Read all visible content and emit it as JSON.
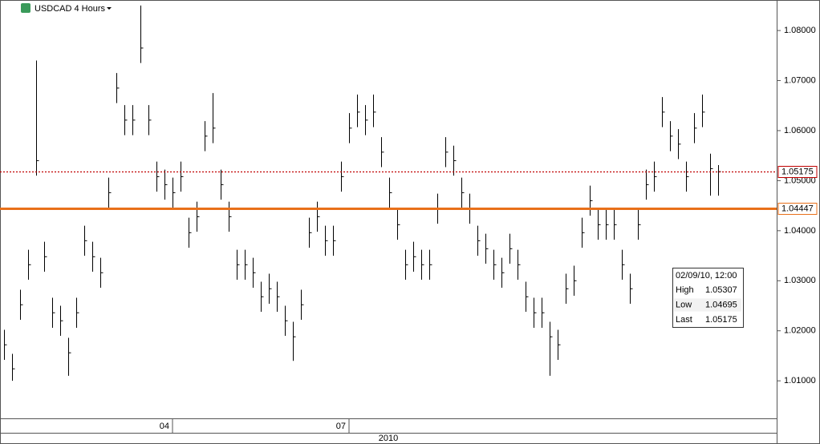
{
  "chart_data": {
    "type": "ohlc",
    "title": "USDCAD 4 Hours",
    "x_group_label": "2010",
    "categories": [
      null,
      null,
      null,
      null,
      null,
      null,
      null,
      null,
      null,
      null,
      null,
      null,
      null,
      null,
      null,
      null,
      null,
      null,
      null,
      null,
      null,
      "04",
      null,
      null,
      null,
      null,
      null,
      null,
      null,
      null,
      null,
      null,
      null,
      null,
      null,
      null,
      null,
      null,
      null,
      null,
      null,
      null,
      null,
      "07",
      null,
      null,
      null,
      null,
      null,
      null,
      null,
      null,
      null,
      null,
      null,
      null,
      null,
      null,
      null,
      null,
      null,
      null,
      null,
      null,
      null,
      null,
      null,
      null,
      null,
      null,
      null,
      null,
      null,
      null,
      null,
      null,
      null,
      null,
      null,
      null,
      null,
      null,
      null,
      null,
      null,
      null,
      null,
      null,
      null,
      null
    ],
    "series": [
      {
        "color": "#000000",
        "high": [
          1.0202,
          1.0154,
          1.0282,
          1.0362,
          1.074,
          1.0378,
          1.0266,
          1.025,
          1.0186,
          1.0266,
          1.041,
          1.0378,
          1.0346,
          1.0506,
          1.0715,
          1.0651,
          1.0651,
          1.085,
          1.0651,
          1.0538,
          1.0522,
          1.0506,
          1.0538,
          1.0426,
          1.0458,
          1.0619,
          1.0675,
          1.0522,
          1.0458,
          1.0362,
          1.0362,
          1.0346,
          1.0298,
          1.0314,
          1.0298,
          1.025,
          1.0218,
          1.0282,
          1.0426,
          1.0458,
          1.041,
          1.041,
          1.0538,
          1.0635,
          1.0672,
          1.0651,
          1.0672,
          1.0587,
          1.0506,
          1.0442,
          1.0362,
          1.0378,
          1.0362,
          1.0362,
          1.0474,
          1.0587,
          1.057,
          1.0506,
          1.0474,
          1.041,
          1.0394,
          1.0362,
          1.0346,
          1.0394,
          1.0362,
          1.0298,
          1.0266,
          1.0266,
          1.0218,
          1.0202,
          1.0314,
          1.033,
          1.0426,
          1.049,
          1.0442,
          1.0442,
          1.0442,
          1.0362,
          1.0314,
          1.0442,
          1.0522,
          1.0538,
          1.0667,
          1.0619,
          1.0603,
          1.0538,
          1.0635,
          1.0672,
          1.0554,
          1.0531
        ],
        "low": [
          1.0142,
          1.01,
          1.0222,
          1.0302,
          1.051,
          1.0318,
          1.0206,
          1.019,
          1.011,
          1.0206,
          1.035,
          1.0318,
          1.0286,
          1.0446,
          1.0655,
          1.0591,
          1.0591,
          1.0735,
          1.0591,
          1.0478,
          1.0462,
          1.0446,
          1.0478,
          1.0366,
          1.0398,
          1.0559,
          1.0575,
          1.0462,
          1.0398,
          1.0302,
          1.0302,
          1.0286,
          1.0238,
          1.0254,
          1.0238,
          1.019,
          1.014,
          1.0222,
          1.0366,
          1.0398,
          1.035,
          1.035,
          1.0478,
          1.0575,
          1.0607,
          1.0591,
          1.0607,
          1.0527,
          1.0446,
          1.0382,
          1.0302,
          1.0318,
          1.0302,
          1.0302,
          1.0414,
          1.0527,
          1.051,
          1.0446,
          1.0414,
          1.035,
          1.0334,
          1.0302,
          1.0286,
          1.0334,
          1.0302,
          1.0238,
          1.0206,
          1.0206,
          1.011,
          1.0142,
          1.0254,
          1.027,
          1.0366,
          1.043,
          1.0382,
          1.0382,
          1.0382,
          1.0302,
          1.0254,
          1.0382,
          1.0462,
          1.0478,
          1.0607,
          1.0559,
          1.0543,
          1.0478,
          1.0575,
          1.0607,
          1.047,
          1.047
        ],
        "close": [
          1.0172,
          1.0124,
          1.0252,
          1.0332,
          1.054,
          1.0348,
          1.0236,
          1.022,
          1.0156,
          1.0236,
          1.038,
          1.0348,
          1.0316,
          1.0476,
          1.0685,
          1.0621,
          1.0621,
          1.0765,
          1.0621,
          1.0508,
          1.0492,
          1.0476,
          1.0508,
          1.0396,
          1.0428,
          1.0589,
          1.0605,
          1.0492,
          1.0428,
          1.0332,
          1.0332,
          1.0316,
          1.0268,
          1.0284,
          1.0268,
          1.022,
          1.0188,
          1.0252,
          1.0396,
          1.0428,
          1.038,
          1.038,
          1.0508,
          1.0605,
          1.0637,
          1.0621,
          1.0637,
          1.0557,
          1.0476,
          1.0412,
          1.0332,
          1.0348,
          1.0332,
          1.0332,
          1.0444,
          1.0557,
          1.054,
          1.0476,
          1.0444,
          1.038,
          1.0364,
          1.0332,
          1.0316,
          1.0364,
          1.0332,
          1.0268,
          1.0236,
          1.0236,
          1.0188,
          1.0172,
          1.0284,
          1.03,
          1.0396,
          1.046,
          1.0412,
          1.0412,
          1.0412,
          1.0332,
          1.0284,
          1.0412,
          1.0492,
          1.0508,
          1.0637,
          1.0589,
          1.0573,
          1.0508,
          1.0605,
          1.0637,
          1.0524,
          1.0518
        ]
      }
    ],
    "ylim": [
      1.0025,
      1.0861
    ],
    "yticks": [
      {
        "value": 1.01,
        "label": "1.01000"
      },
      {
        "value": 1.02,
        "label": "1.02000"
      },
      {
        "value": 1.03,
        "label": "1.03000"
      },
      {
        "value": 1.04,
        "label": "1.04000"
      },
      {
        "value": 1.05,
        "label": "1.05000"
      },
      {
        "value": 1.06,
        "label": "1.06000"
      },
      {
        "value": 1.07,
        "label": "1.07000"
      },
      {
        "value": 1.08,
        "label": "1.08000"
      }
    ],
    "price_lines": [
      {
        "value": 1.05175,
        "color": "#c00000",
        "style": "dotted"
      },
      {
        "value": 1.04447,
        "color": "#e8701a",
        "style": "solid"
      }
    ],
    "info": {
      "date": "02/09/10, 12:00",
      "rows": [
        {
          "name": "High",
          "value": 1.05307
        },
        {
          "name": "Low",
          "value": 1.04695
        },
        {
          "name": "Last",
          "value": 1.05175
        }
      ]
    }
  }
}
